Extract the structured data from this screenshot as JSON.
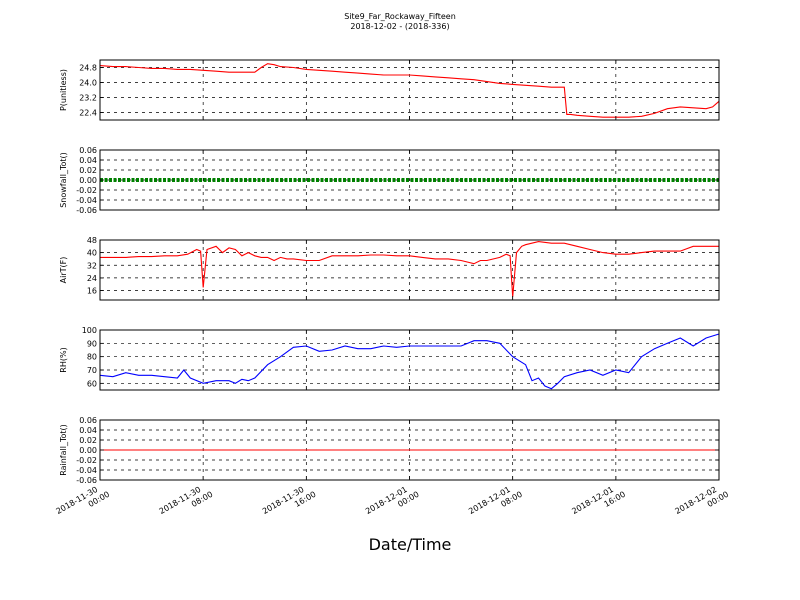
{
  "figure": {
    "title": "Site9_Far_Rockaway_Fifteen",
    "subtitle": "2018-12-02 - (2018-336)",
    "xlabel": "Date/Time",
    "x_ticks": [
      {
        "line1": "2018-11-30",
        "line2": "00:00"
      },
      {
        "line1": "2018-11-30",
        "line2": "08:00"
      },
      {
        "line1": "2018-11-30",
        "line2": "16:00"
      },
      {
        "line1": "2018-12-01",
        "line2": "00:00"
      },
      {
        "line1": "2018-12-01",
        "line2": "08:00"
      },
      {
        "line1": "2018-12-01",
        "line2": "16:00"
      },
      {
        "line1": "2018-12-02",
        "line2": "00:00"
      }
    ]
  },
  "chart_data": [
    {
      "type": "line",
      "ylabel": "P(unitless)",
      "color": "#ff0000",
      "grid": true,
      "x_range_hours": [
        0,
        48
      ],
      "ylim": [
        22.0,
        25.2
      ],
      "yticks": [
        "24.8",
        "24.0",
        "23.2",
        "22.4"
      ],
      "ytick_values": [
        24.8,
        24.0,
        23.2,
        22.4
      ],
      "series": [
        {
          "x": [
            0,
            1,
            2,
            3,
            4,
            5,
            6,
            7,
            8,
            9,
            10,
            11,
            12,
            12.5,
            13,
            13.5,
            14,
            15,
            16,
            17,
            18,
            19,
            20,
            21,
            22,
            23,
            24,
            25,
            26,
            27,
            28,
            29,
            30,
            31,
            32,
            33,
            34,
            35,
            36,
            36.2,
            36.5,
            37,
            38,
            39,
            40,
            41,
            42,
            43,
            44,
            45,
            46,
            47,
            47.5,
            48
          ],
          "y": [
            24.9,
            24.85,
            24.85,
            24.8,
            24.75,
            24.75,
            24.7,
            24.7,
            24.65,
            24.6,
            24.55,
            24.55,
            24.55,
            24.8,
            25.0,
            24.95,
            24.85,
            24.8,
            24.7,
            24.65,
            24.6,
            24.55,
            24.5,
            24.45,
            24.4,
            24.4,
            24.4,
            24.35,
            24.3,
            24.25,
            24.2,
            24.15,
            24.05,
            23.95,
            23.9,
            23.85,
            23.8,
            23.75,
            23.75,
            22.3,
            22.3,
            22.25,
            22.2,
            22.15,
            22.15,
            22.15,
            22.2,
            22.35,
            22.6,
            22.7,
            22.65,
            22.6,
            22.7,
            23.0
          ]
        }
      ]
    },
    {
      "type": "line",
      "ylabel": "Snowfall_Tot()",
      "color": "#008000",
      "grid": true,
      "x_range_hours": [
        0,
        48
      ],
      "ylim": [
        -0.06,
        0.06
      ],
      "yticks": [
        "0.06",
        "0.04",
        "0.02",
        "0.00",
        "-0.02",
        "-0.04",
        "-0.06"
      ],
      "ytick_values": [
        0.06,
        0.04,
        0.02,
        0.0,
        -0.02,
        -0.04,
        -0.06
      ],
      "series": [
        {
          "x": [
            0,
            48
          ],
          "y": [
            0,
            0
          ]
        }
      ]
    },
    {
      "type": "line",
      "ylabel": "AirT(F)",
      "color": "#ff0000",
      "grid": true,
      "x_range_hours": [
        0,
        48
      ],
      "ylim": [
        10,
        48
      ],
      "yticks": [
        "48",
        "40",
        "32",
        "24",
        "16"
      ],
      "ytick_values": [
        48,
        40,
        32,
        24,
        16
      ],
      "series": [
        {
          "x": [
            0,
            1,
            2,
            3,
            4,
            5,
            6,
            6.8,
            7.5,
            7.8,
            8.0,
            8.3,
            9,
            9.5,
            10,
            10.5,
            11,
            11.5,
            12,
            12.5,
            13,
            13.5,
            14,
            14.5,
            15,
            16,
            17,
            18,
            19,
            20,
            21,
            22,
            23,
            24,
            25,
            26,
            27,
            28,
            29,
            29.5,
            30,
            31,
            31.5,
            31.8,
            32.0,
            32.3,
            32.7,
            33,
            34,
            35,
            36,
            37,
            38,
            39,
            40,
            41,
            42,
            43,
            44,
            45,
            46,
            47,
            48
          ],
          "y": [
            37,
            37,
            37,
            37.5,
            37.5,
            38,
            38,
            39,
            42,
            41,
            18,
            42,
            44,
            40,
            43,
            42,
            38,
            40,
            38,
            37,
            37,
            35,
            37,
            36,
            36,
            35,
            35,
            38,
            38,
            38,
            38.5,
            38.5,
            38,
            38,
            37,
            36,
            36,
            35,
            33,
            35,
            35,
            37,
            39,
            38,
            12,
            40,
            44,
            45,
            47,
            46,
            46,
            44,
            42,
            40,
            39,
            39,
            40,
            41,
            41,
            41,
            44,
            44,
            44
          ]
        }
      ]
    },
    {
      "type": "line",
      "ylabel": "RH(%)",
      "color": "#0000ff",
      "grid": true,
      "x_range_hours": [
        0,
        48
      ],
      "ylim": [
        55,
        100
      ],
      "yticks": [
        "100",
        "90",
        "80",
        "70",
        "60"
      ],
      "ytick_values": [
        100,
        90,
        80,
        70,
        60
      ],
      "series": [
        {
          "x": [
            0,
            1,
            2,
            3,
            4,
            5,
            6,
            6.5,
            7,
            8,
            9,
            10,
            10.5,
            11,
            11.5,
            12,
            13,
            14,
            15,
            16,
            17,
            18,
            19,
            20,
            21,
            22,
            23,
            24,
            25,
            26,
            27,
            28,
            29,
            30,
            31,
            32,
            33,
            33.5,
            34,
            34.5,
            35,
            35.5,
            36,
            37,
            38,
            39,
            40,
            41,
            42,
            43,
            44,
            45,
            46,
            47,
            48
          ],
          "y": [
            66,
            65,
            68,
            66,
            66,
            65,
            64,
            70,
            64,
            60,
            62,
            62,
            60,
            63,
            62,
            64,
            74,
            80,
            87,
            88,
            84,
            85,
            88,
            86,
            86,
            88,
            87,
            88,
            88,
            88,
            88,
            88,
            92,
            92,
            90,
            80,
            74,
            62,
            64,
            58,
            56,
            60,
            65,
            68,
            70,
            66,
            70,
            68,
            80,
            86,
            90,
            94,
            88,
            94,
            97
          ]
        }
      ]
    },
    {
      "type": "line",
      "ylabel": "Rainfall_Tot()",
      "color": "#ff0000",
      "grid": true,
      "x_range_hours": [
        0,
        48
      ],
      "ylim": [
        -0.06,
        0.06
      ],
      "yticks": [
        "0.06",
        "0.04",
        "0.02",
        "0.00",
        "-0.02",
        "-0.04",
        "-0.06"
      ],
      "ytick_values": [
        0.06,
        0.04,
        0.02,
        0.0,
        -0.02,
        -0.04,
        -0.06
      ],
      "series": [
        {
          "x": [
            0,
            48
          ],
          "y": [
            0,
            0
          ]
        }
      ]
    }
  ]
}
